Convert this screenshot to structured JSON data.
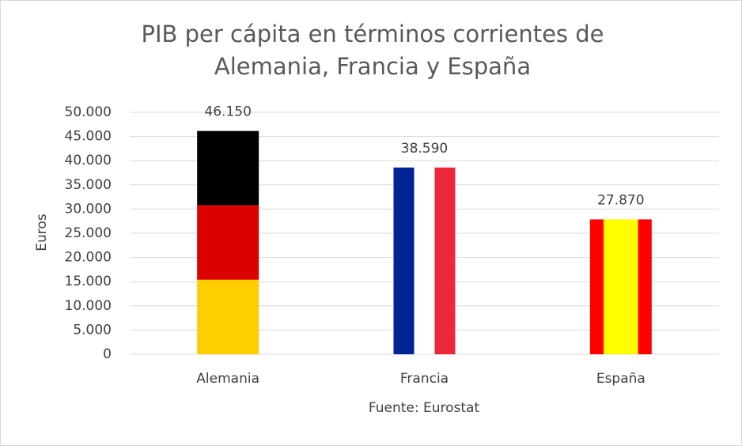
{
  "chart_data": {
    "type": "bar",
    "title": "PIB per cápita en términos corrientes de Alemania, Francia y España",
    "y_label": "Euros",
    "x_label": "Fuente: Eurostat",
    "categories": [
      "Alemania",
      "Francia",
      "España"
    ],
    "values": [
      46150,
      38590,
      27870
    ],
    "value_labels": [
      "46.150",
      "38.590",
      "27.870"
    ],
    "ylim": [
      0,
      50000
    ],
    "yticks": [
      0,
      {
        "value": 5000,
        "label": "5.000"
      },
      {
        "value": 10000,
        "label": "10.000"
      },
      {
        "value": 15000,
        "label": "15.000"
      },
      {
        "value": 20000,
        "label": "20.000"
      },
      {
        "value": 25000,
        "label": "25.000"
      },
      {
        "value": 30000,
        "label": "30.000"
      },
      {
        "value": 35000,
        "label": "35.000"
      },
      {
        "value": 40000,
        "label": "40.000"
      },
      {
        "value": 45000,
        "label": "45.000"
      },
      {
        "value": 50000,
        "label": "50.000"
      }
    ],
    "grid": true
  }
}
